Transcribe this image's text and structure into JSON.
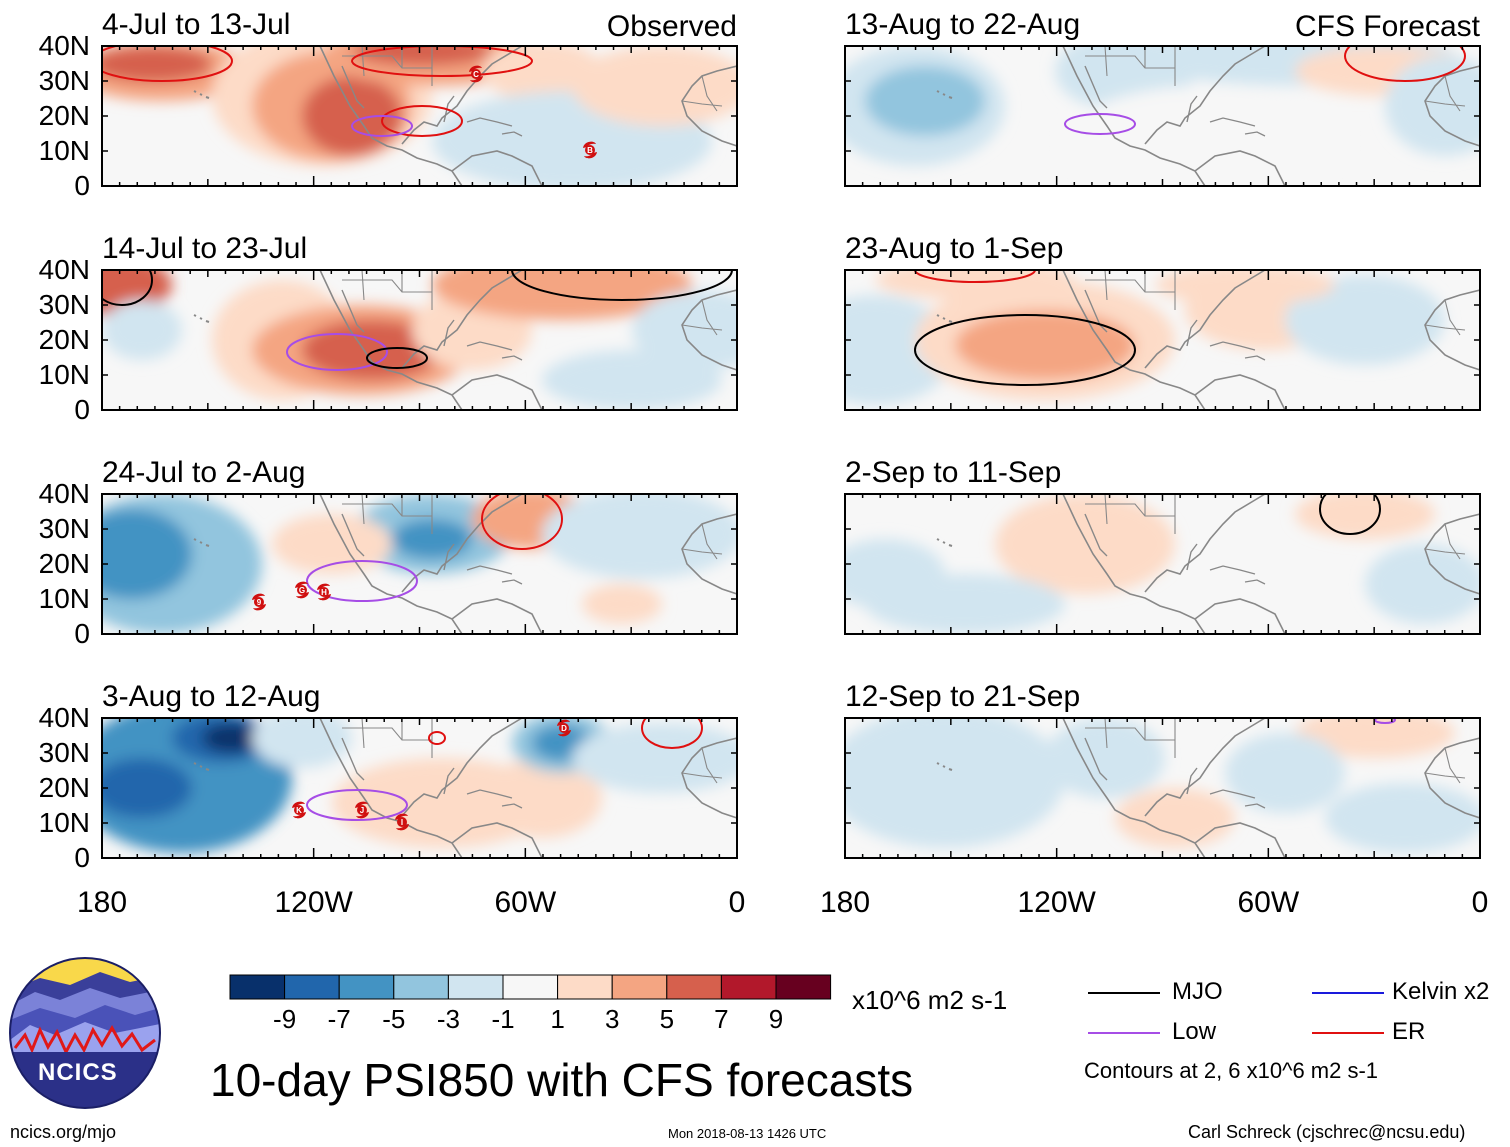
{
  "colors": {
    "mjo": "#000000",
    "low": "#a64de6",
    "kelvin": "#1a1adc",
    "er": "#e01010",
    "land": "#888888",
    "storm": "#d01010"
  },
  "panels": [
    {
      "title": "4-Jul to 13-Jul",
      "tag": "Observed",
      "storms": [
        "C",
        "B"
      ]
    },
    {
      "title": "13-Aug to 22-Aug",
      "tag": "CFS Forecast",
      "storms": []
    },
    {
      "title": "14-Jul to 23-Jul",
      "tag": "",
      "storms": []
    },
    {
      "title": "23-Aug to 1-Sep",
      "tag": "",
      "storms": []
    },
    {
      "title": "24-Jul to 2-Aug",
      "tag": "",
      "storms": [
        "9",
        "G",
        "H"
      ]
    },
    {
      "title": "2-Sep to 11-Sep",
      "tag": "",
      "storms": []
    },
    {
      "title": "3-Aug to 12-Aug",
      "tag": "",
      "storms": [
        "D",
        "K",
        "J",
        "I"
      ]
    },
    {
      "title": "12-Sep to 21-Sep",
      "tag": "",
      "storms": []
    }
  ],
  "axes": {
    "lat_labels": [
      "40N",
      "30N",
      "20N",
      "10N",
      "0"
    ],
    "lon_labels": [
      "180",
      "120W",
      "60W",
      "0"
    ]
  },
  "colorbar": {
    "colors": [
      "#08306b",
      "#2166ac",
      "#4393c3",
      "#92c5de",
      "#d1e5f0",
      "#f7f7f7",
      "#fddbc7",
      "#f4a582",
      "#d6604d",
      "#b2182b",
      "#67001f"
    ],
    "tick_labels": [
      "-9",
      "-7",
      "-5",
      "-3",
      "-1",
      "1",
      "3",
      "5",
      "7",
      "9"
    ],
    "units": "x10^6 m2 s-1"
  },
  "legend": {
    "items": [
      {
        "label": "MJO",
        "color_key": "mjo"
      },
      {
        "label": "Kelvin x2",
        "color_key": "kelvin"
      },
      {
        "label": "Low",
        "color_key": "low"
      },
      {
        "label": "ER",
        "color_key": "er"
      }
    ],
    "note": "Contours at 2, 6 x10^6 m2 s-1"
  },
  "logo": {
    "text": "NCICS"
  },
  "main_title": "10-day PSI850 with CFS forecasts",
  "footer": {
    "left": "ncics.org/mjo",
    "center": "Mon 2018-08-13 1426 UTC",
    "right": "Carl Schreck (cjschrec@ncsu.edu)"
  }
}
